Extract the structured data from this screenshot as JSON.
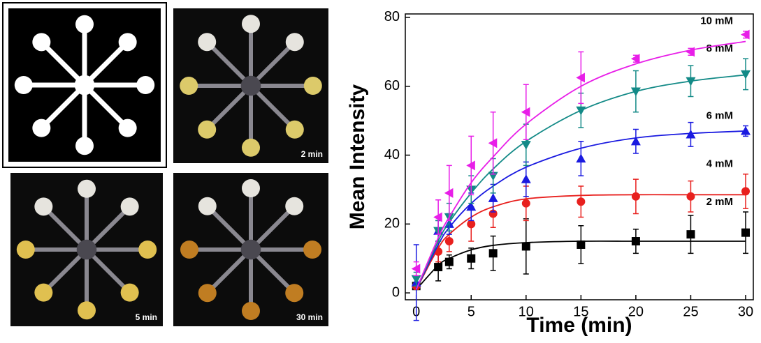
{
  "panels": [
    {
      "label": "2 min"
    },
    {
      "label": "5 min"
    },
    {
      "label": "30 min"
    }
  ],
  "chart_data": {
    "type": "scatter",
    "x_label": "Time (min)",
    "y_label": "Mean Intensity",
    "x": [
      0,
      2,
      3,
      5,
      7,
      10,
      15,
      20,
      25,
      30
    ],
    "xlim": [
      -1,
      30.7
    ],
    "ylim": [
      -2,
      81
    ],
    "xticks": [
      0,
      5,
      10,
      15,
      20,
      25,
      30
    ],
    "yticks": [
      0,
      20,
      40,
      60,
      80
    ],
    "series": [
      {
        "name": "2 mM",
        "color": "#000000",
        "marker": "square",
        "values": [
          2,
          7.5,
          9,
          10,
          11.5,
          13.5,
          14,
          15,
          17,
          17.5
        ],
        "errors": [
          1,
          4,
          2,
          3,
          5,
          8,
          5.5,
          3.5,
          5.5,
          6
        ],
        "fit": [
          1,
          8,
          10,
          12.5,
          13.8,
          14.6,
          15,
          15,
          15,
          15
        ]
      },
      {
        "name": "4 mM",
        "color": "#e8201e",
        "marker": "circle",
        "values": [
          2,
          12,
          15,
          20,
          23,
          26,
          26.5,
          28,
          28,
          29.5
        ],
        "errors": [
          1,
          3,
          3,
          5,
          4,
          5,
          4.5,
          5,
          4.5,
          5
        ],
        "fit": [
          1,
          13,
          17,
          22,
          25,
          27.3,
          28.3,
          28.5,
          28.5,
          28.5
        ]
      },
      {
        "name": "6 mM",
        "color": "#1a1ae0",
        "marker": "triangle-up",
        "values": [
          3,
          18,
          20,
          25,
          27.5,
          33,
          39,
          44,
          46,
          47
        ],
        "errors": [
          11,
          3,
          3,
          4,
          4,
          5,
          5,
          3.5,
          3.5,
          1.5
        ],
        "fit": [
          1,
          14,
          19,
          26,
          31,
          36.5,
          42,
          45,
          46.3,
          47
        ]
      },
      {
        "name": "8 mM",
        "color": "#138a87",
        "marker": "triangle-down",
        "values": [
          4,
          18,
          22,
          30,
          34,
          43,
          53,
          58.5,
          61.5,
          63.5
        ],
        "errors": [
          2,
          3,
          4,
          4,
          5,
          6,
          5,
          6,
          4.5,
          4.5
        ],
        "fit": [
          1,
          15,
          20.5,
          29,
          36,
          44,
          53,
          58.5,
          61.5,
          63.3
        ]
      },
      {
        "name": "10 mM",
        "color": "#e81ee8",
        "marker": "triangle-left",
        "values": [
          7,
          22,
          29,
          37,
          43.5,
          52.5,
          62.5,
          68,
          70,
          75
        ],
        "errors": [
          2,
          5,
          8,
          8.5,
          9,
          8,
          7.5,
          1,
          1,
          1
        ],
        "fit": [
          1,
          16,
          22,
          32,
          39.5,
          49,
          60,
          66.5,
          70.5,
          73
        ]
      }
    ]
  }
}
